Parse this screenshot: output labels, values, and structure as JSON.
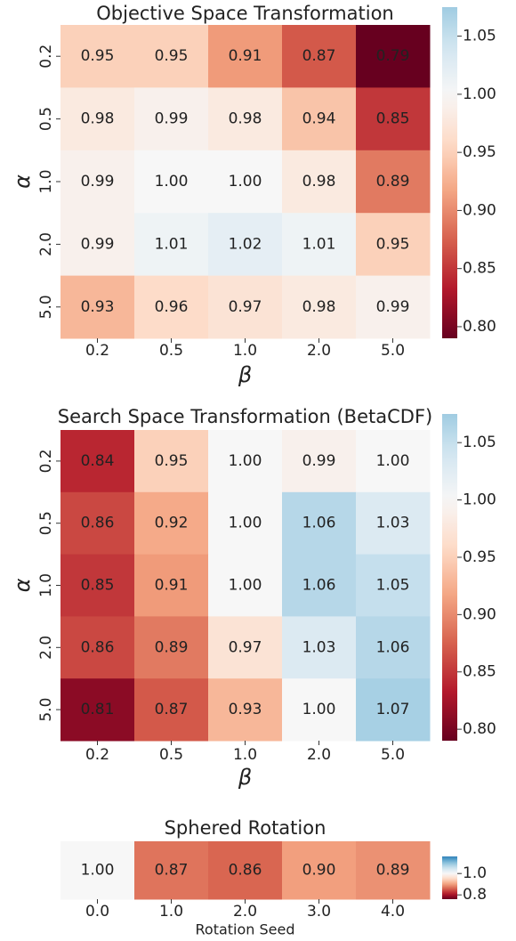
{
  "chart_data": [
    {
      "type": "heatmap",
      "title": "Objective Space Transformation",
      "xlabel": "β",
      "ylabel": "α",
      "x": [
        "0.2",
        "0.5",
        "1.0",
        "2.0",
        "5.0"
      ],
      "y": [
        "0.2",
        "0.5",
        "1.0",
        "2.0",
        "5.0"
      ],
      "values": [
        [
          0.95,
          0.95,
          0.91,
          0.87,
          0.79
        ],
        [
          0.98,
          0.99,
          0.98,
          0.94,
          0.85
        ],
        [
          0.99,
          1.0,
          1.0,
          0.98,
          0.89
        ],
        [
          0.99,
          1.01,
          1.02,
          1.01,
          0.95
        ],
        [
          0.93,
          0.96,
          0.97,
          0.98,
          0.99
        ]
      ],
      "value_labels": [
        [
          "0.95",
          "0.95",
          "0.91",
          "0.87",
          "0.79"
        ],
        [
          "0.98",
          "0.99",
          "0.98",
          "0.94",
          "0.85"
        ],
        [
          "0.99",
          "1.00",
          "1.00",
          "0.98",
          "0.89"
        ],
        [
          "0.99",
          "1.01",
          "1.02",
          "1.01",
          "0.95"
        ],
        [
          "0.93",
          "0.96",
          "0.97",
          "0.98",
          "0.99"
        ]
      ],
      "cmap": "RdBu",
      "center": 1,
      "vlim": [
        0.79,
        1.075
      ],
      "cticks": [
        1.05,
        {
          "value": 1,
          "label": "1.00"
        },
        0.95,
        {
          "value": 0.9,
          "label": "0.90"
        },
        0.85,
        {
          "value": 0.8,
          "label": "0.80"
        }
      ]
    },
    {
      "type": "heatmap",
      "title": "Search Space Transformation (BetaCDF)",
      "xlabel": "β",
      "ylabel": "α",
      "x": [
        "0.2",
        "0.5",
        "1.0",
        "2.0",
        "5.0"
      ],
      "y": [
        "0.2",
        "0.5",
        "1.0",
        "2.0",
        "5.0"
      ],
      "values": [
        [
          0.84,
          0.95,
          1.0,
          0.99,
          1.0
        ],
        [
          0.86,
          0.92,
          1.0,
          1.06,
          1.03
        ],
        [
          0.85,
          0.91,
          1.0,
          1.06,
          1.05
        ],
        [
          0.86,
          0.89,
          0.97,
          1.03,
          1.06
        ],
        [
          0.81,
          0.87,
          0.93,
          1.0,
          1.07
        ]
      ],
      "value_labels": [
        [
          "0.84",
          "0.95",
          "1.00",
          "0.99",
          "1.00"
        ],
        [
          "0.86",
          "0.92",
          "1.00",
          "1.06",
          "1.03"
        ],
        [
          "0.85",
          "0.91",
          "1.00",
          "1.06",
          "1.05"
        ],
        [
          "0.86",
          "0.89",
          "0.97",
          "1.03",
          "1.06"
        ],
        [
          "0.81",
          "0.87",
          "0.93",
          "1.00",
          "1.07"
        ]
      ],
      "cmap": "RdBu",
      "center": 1,
      "vlim": [
        0.79,
        1.075
      ],
      "cticks": [
        1.05,
        {
          "value": 1,
          "label": "1.00"
        },
        0.95,
        {
          "value": 0.9,
          "label": "0.90"
        },
        0.85,
        {
          "value": 0.8,
          "label": "0.80"
        }
      ]
    },
    {
      "type": "heatmap",
      "title": "Sphered Rotation",
      "xlabel": "Rotation Seed",
      "x": [
        "0.0",
        "1.0",
        "2.0",
        "3.0",
        "4.0"
      ],
      "values": [
        [
          1.0,
          0.87,
          0.86,
          0.9,
          0.89
        ]
      ],
      "value_labels": [
        [
          "1.00",
          "0.87",
          "0.86",
          "0.90",
          "0.89"
        ]
      ],
      "cmap": "RdBu",
      "center": 1,
      "vlim": [
        0.76,
        1.16
      ],
      "cticks": [
        {
          "value": 1,
          "label": "1.0"
        },
        {
          "value": 0.8,
          "label": "0.8"
        }
      ]
    }
  ]
}
